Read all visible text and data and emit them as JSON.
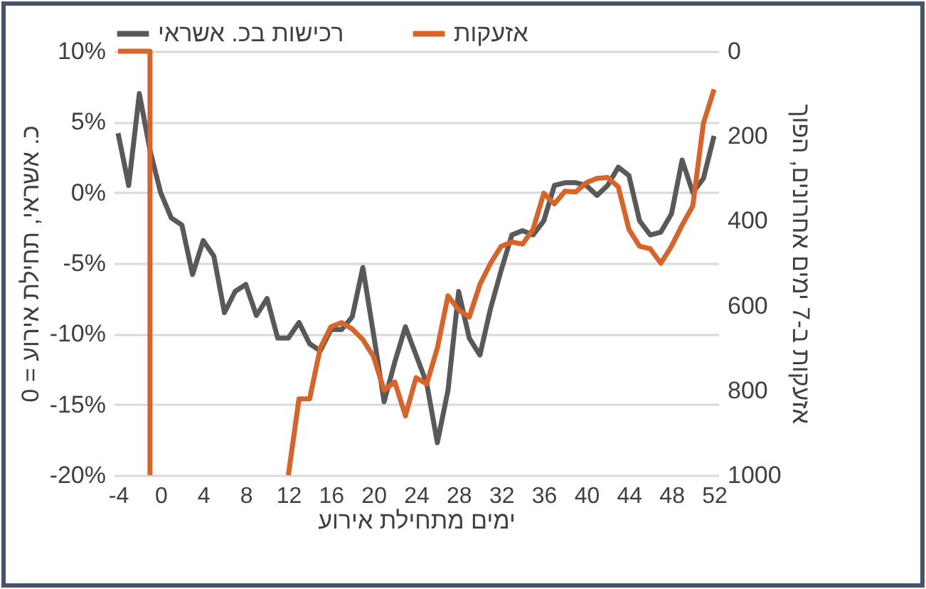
{
  "chart_data": {
    "type": "line",
    "xlabel": "ימים מתחילת אירוע",
    "ylabel": "כ. אשראי, תחילת אירוע = 0",
    "y2label": "אזעקות ב-7 ימים אחרונים, הפוך",
    "xlim": [
      -4.4,
      52.4
    ],
    "xticks": [
      -4,
      0,
      4,
      8,
      12,
      16,
      20,
      24,
      28,
      32,
      36,
      40,
      44,
      48,
      52
    ],
    "ylim": [
      -20,
      10
    ],
    "yticks": [
      {
        "value": -20,
        "label": "-20%"
      },
      {
        "value": -15,
        "label": "-15%"
      },
      {
        "value": -10,
        "label": "-10%"
      },
      {
        "value": -5,
        "label": "-5%"
      },
      {
        "value": 0,
        "label": "0%"
      },
      {
        "value": 5,
        "label": "5%"
      },
      {
        "value": 10,
        "label": "10%"
      }
    ],
    "y2lim": [
      1000,
      0
    ],
    "y2ticks": [
      0,
      200,
      400,
      600,
      800,
      1000
    ],
    "grid": "y",
    "legend": "top",
    "line_style": "solid",
    "series": [
      {
        "name": "רכישות בכ. אשראי",
        "color": "#595959",
        "x": [
          -4,
          -3,
          -2,
          -1,
          0,
          1,
          2,
          3,
          4,
          5,
          6,
          7,
          8,
          9,
          10,
          11,
          12,
          13,
          14,
          15,
          16,
          17,
          18,
          19,
          20,
          21,
          22,
          23,
          24,
          25,
          26,
          27,
          28,
          29,
          30,
          31,
          32,
          33,
          34,
          35,
          36,
          37,
          38,
          39,
          40,
          41,
          42,
          43,
          44,
          45,
          46,
          47,
          48,
          49,
          50,
          51,
          52
        ],
        "values": [
          4.2,
          0.5,
          7,
          3,
          0,
          -1.8,
          -2.3,
          -5.8,
          -3.4,
          -4.5,
          -8.5,
          -7,
          -6.5,
          -8.7,
          -7.5,
          -10.3,
          -10.3,
          -9.2,
          -10.7,
          -11.2,
          -9.7,
          -9.7,
          -8.8,
          -5.3,
          -10,
          -14.8,
          -12,
          -9.5,
          -11.5,
          -13.5,
          -17.7,
          -14,
          -7,
          -10.3,
          -11.5,
          -8.2,
          -5.5,
          -3,
          -2.7,
          -3,
          -2,
          0.5,
          0.7,
          0.7,
          0.5,
          -0.2,
          0.5,
          1.8,
          1.2,
          -2,
          -3,
          -2.8,
          -1.5,
          2.3,
          0,
          1,
          4
        ]
      },
      {
        "name": "אזעקות",
        "color": "#d9642a",
        "axis": "y2",
        "x": [
          -4,
          -3,
          -2,
          -1,
          -1,
          0,
          1,
          2,
          3,
          4,
          5,
          6,
          7,
          8,
          9,
          10,
          11,
          12,
          13,
          14,
          15,
          16,
          17,
          18,
          19,
          20,
          21,
          22,
          23,
          24,
          25,
          26,
          27,
          28,
          29,
          30,
          31,
          32,
          33,
          34,
          35,
          36,
          37,
          38,
          39,
          40,
          41,
          42,
          43,
          44,
          45,
          46,
          47,
          48,
          49,
          50,
          51,
          52
        ],
        "values": [
          0,
          0,
          0,
          0,
          1000,
          null,
          null,
          null,
          null,
          null,
          null,
          null,
          null,
          null,
          null,
          null,
          null,
          1000,
          820,
          820,
          700,
          650,
          640,
          655,
          680,
          720,
          800,
          780,
          860,
          770,
          785,
          700,
          577,
          610,
          627,
          550,
          500,
          460,
          450,
          455,
          420,
          335,
          360,
          330,
          332,
          310,
          300,
          298,
          320,
          420,
          460,
          466,
          500,
          460,
          410,
          365,
          170,
          90
        ]
      }
    ]
  }
}
